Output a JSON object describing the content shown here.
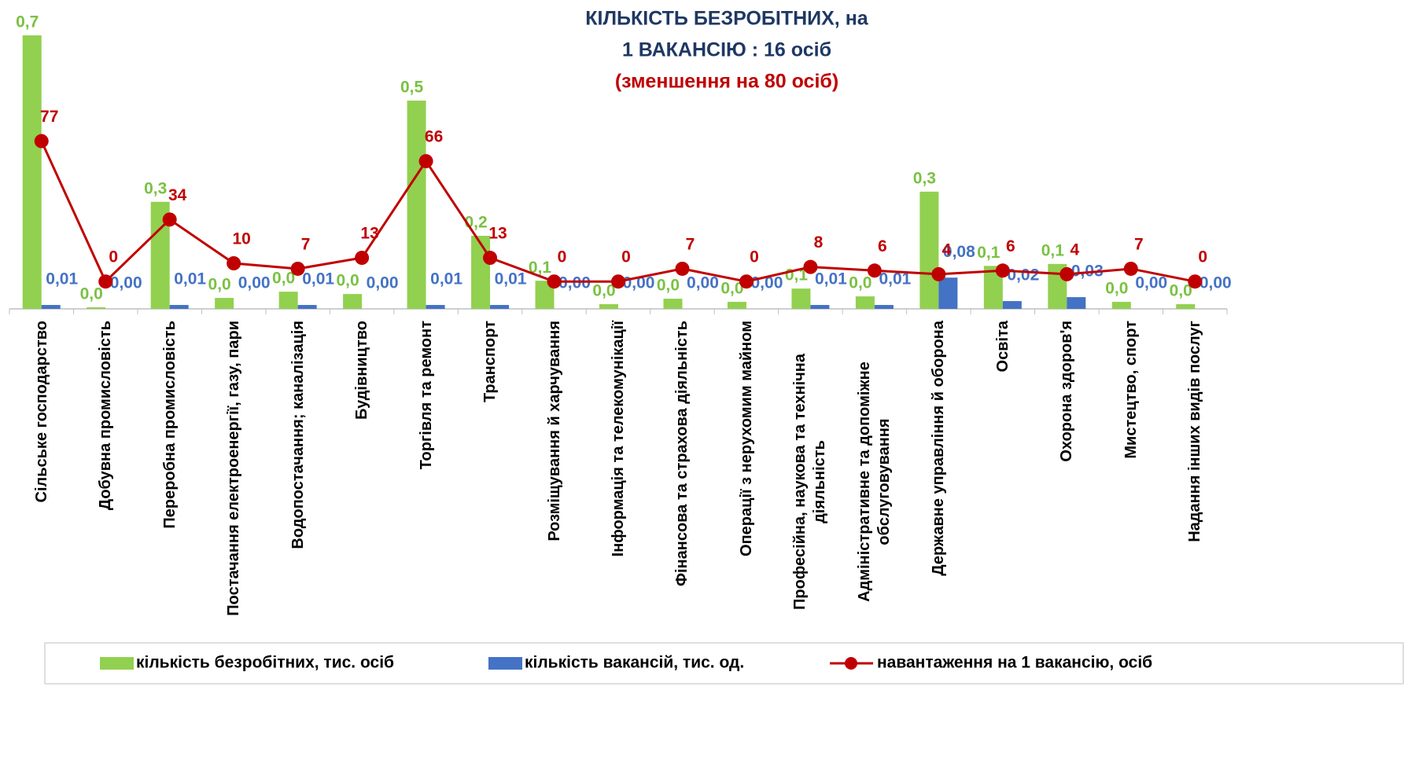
{
  "chart_data": {
    "type": "combo",
    "title": [
      "КІЛЬКІСТЬ  БЕЗРОБІТНИХ, на",
      "1  ВАКАНСІЮ : 16 осіб"
    ],
    "subtitle": "(зменшення  на 80 осіб)",
    "categories": [
      "Сільське господарство",
      "Добувна промисловість",
      "Переробна промисловість",
      "Постачання електроенергії, газу, пари",
      "Водопостачання; каналізація",
      "Будівництво",
      "Торгівля та ремонт",
      "Транспорт",
      "Розміщування й харчування",
      "Інформація та телекомунікації",
      "Фінансова та страхова діяльність",
      "Операції з нерухомим майном",
      "Професійна, наукова та технічна діяльність",
      "Адміністративне та допоміжне обслуговування",
      "Державне управління й оборона",
      "Освіта",
      "Охорона здоров'я",
      "Мистецтво, спорт",
      "Надання інших видів послуг"
    ],
    "series": [
      {
        "name": "кількість безробітних, тис. осіб",
        "color": "#92d050",
        "type": "bar",
        "values": [
          0.7,
          0.004,
          0.274,
          0.028,
          0.044,
          0.038,
          0.533,
          0.187,
          0.072,
          0.012,
          0.026,
          0.018,
          0.052,
          0.032,
          0.3,
          0.11,
          0.115,
          0.018,
          0.012
        ],
        "value_labels": [
          "0,7",
          "0,0",
          "0,3",
          "0,0",
          "0,0",
          "0,0",
          "0,5",
          "0,2",
          "0,1",
          "0,0",
          "0,0",
          "0,0",
          "0,1",
          "0,0",
          "0,3",
          "0,1",
          "0,1",
          "0,0",
          "0,0"
        ]
      },
      {
        "name": "кількість вакансій, тис. од.",
        "color": "#4472c4",
        "type": "bar",
        "values": [
          0.01,
          0.0,
          0.01,
          0.0,
          0.01,
          0.0,
          0.01,
          0.01,
          0.0,
          0.0,
          0.0,
          0.0,
          0.01,
          0.01,
          0.08,
          0.02,
          0.03,
          0.0,
          0.0
        ],
        "value_labels": [
          "0,01",
          "0,00",
          "0,01",
          "0,00",
          "0,01",
          "0,00",
          "0,01",
          "0,01",
          "0,00",
          "0,00",
          "0,00",
          "0,00",
          "0,01",
          "0,01",
          "0,08",
          "0,02",
          "0,03",
          "0,00",
          "0,00"
        ]
      },
      {
        "name": "навантаження на 1 вакансію, осіб",
        "color": "#c00000",
        "type": "line",
        "axis": "y2",
        "values": [
          77,
          0,
          34,
          10,
          7,
          13,
          66,
          13,
          0,
          0,
          7,
          0,
          8,
          6,
          4,
          6,
          4,
          7,
          0
        ]
      }
    ],
    "ylim": [
      0,
      0.7
    ],
    "y2lim": [
      -15,
      135
    ],
    "legend": "bottom"
  }
}
